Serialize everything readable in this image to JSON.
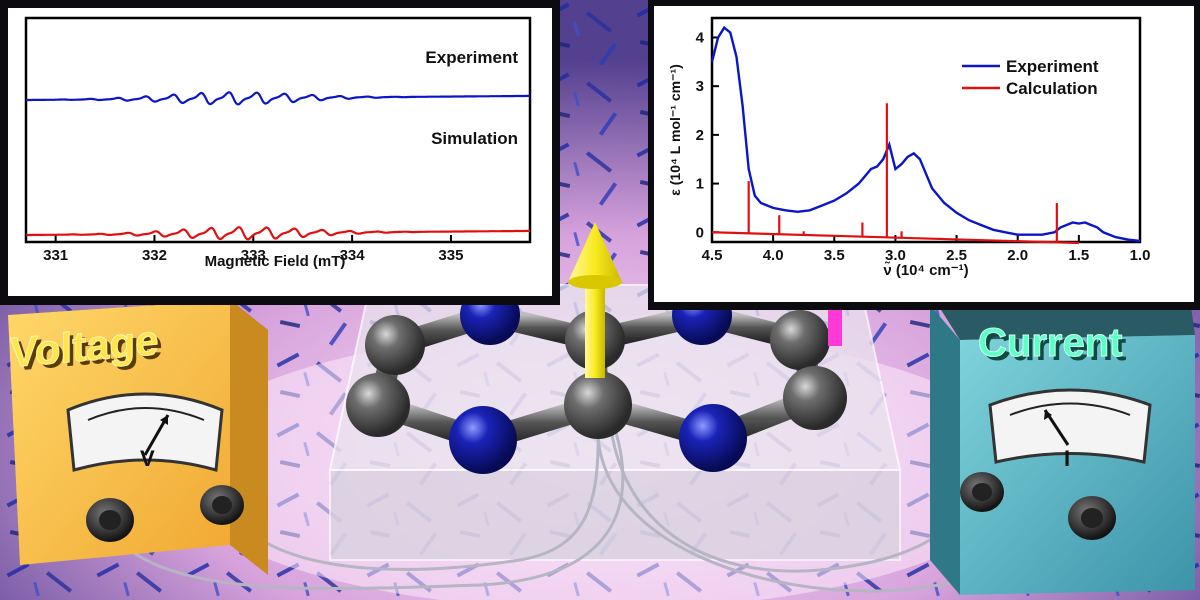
{
  "meters": {
    "voltage": {
      "label": "Voltage",
      "symbol": "V",
      "color": "#f5c242"
    },
    "current": {
      "label": "Current",
      "symbol": "I",
      "color": "#4fb6c4"
    }
  },
  "molecule_colors": {
    "carbon": "#5c5c5c",
    "nitrogen": "#1a23b8",
    "spin_arrow": "#f8ea1e",
    "sign": "#ff38d8"
  },
  "chart_data": [
    {
      "type": "line",
      "title": "",
      "xlabel": "Magnetic Field (mT)",
      "ylabel": "",
      "xlim": [
        330.7,
        335.8
      ],
      "xticks": [
        331,
        332,
        333,
        334,
        335
      ],
      "series": [
        {
          "name": "Experiment",
          "color": "#0a16c8",
          "center": 332.8,
          "offset": 0.35,
          "spacing": 0.28,
          "lines": 13
        },
        {
          "name": "Simulation",
          "color": "#e01010",
          "center": 332.9,
          "offset": -0.45,
          "spacing": 0.28,
          "lines": 13
        }
      ]
    },
    {
      "type": "line",
      "title": "",
      "xlabel": "ν̃ (10⁴ cm⁻¹)",
      "ylabel": "ε (10⁴ L mol⁻¹ cm⁻¹)",
      "xlim": [
        4.5,
        1.0
      ],
      "ylim": [
        -0.2,
        4.4
      ],
      "xticks": [
        "4.5",
        "4.0",
        "3.5",
        "3.0",
        "2.5",
        "2.0",
        "1.5",
        "1.0"
      ],
      "yticks": [
        0,
        1,
        2,
        3,
        4
      ],
      "series": [
        {
          "name": "Experiment",
          "color": "#0a16c8",
          "x": [
            4.5,
            4.45,
            4.4,
            4.35,
            4.3,
            4.25,
            4.2,
            4.15,
            4.1,
            4.0,
            3.9,
            3.8,
            3.7,
            3.6,
            3.5,
            3.4,
            3.3,
            3.25,
            3.2,
            3.15,
            3.1,
            3.05,
            3.0,
            2.95,
            2.9,
            2.85,
            2.8,
            2.75,
            2.7,
            2.6,
            2.5,
            2.4,
            2.3,
            2.2,
            2.1,
            2.0,
            1.9,
            1.8,
            1.7,
            1.65,
            1.6,
            1.55,
            1.5,
            1.45,
            1.4,
            1.35,
            1.3,
            1.2,
            1.1,
            1.0
          ],
          "y": [
            3.5,
            4.0,
            4.2,
            4.1,
            3.6,
            2.6,
            1.3,
            0.75,
            0.6,
            0.5,
            0.45,
            0.42,
            0.45,
            0.55,
            0.65,
            0.8,
            1.0,
            1.15,
            1.3,
            1.35,
            1.5,
            1.8,
            1.3,
            1.4,
            1.55,
            1.62,
            1.5,
            1.2,
            0.9,
            0.6,
            0.4,
            0.25,
            0.15,
            0.05,
            0.0,
            -0.05,
            -0.05,
            -0.05,
            0.0,
            0.1,
            0.15,
            0.2,
            0.18,
            0.2,
            0.15,
            0.1,
            0.0,
            -0.1,
            -0.15,
            -0.18
          ]
        },
        {
          "name": "Calculation",
          "color": "#e01010",
          "baseline": {
            "x": [
              4.5,
              1.5
            ],
            "y": [
              0.0,
              -0.22
            ]
          },
          "sticks": {
            "x": [
              4.2,
              3.95,
              3.75,
              3.27,
              3.07,
              2.95,
              1.68
            ],
            "y": [
              1.05,
              0.35,
              0.02,
              0.2,
              2.65,
              0.02,
              0.6
            ]
          }
        }
      ]
    }
  ]
}
